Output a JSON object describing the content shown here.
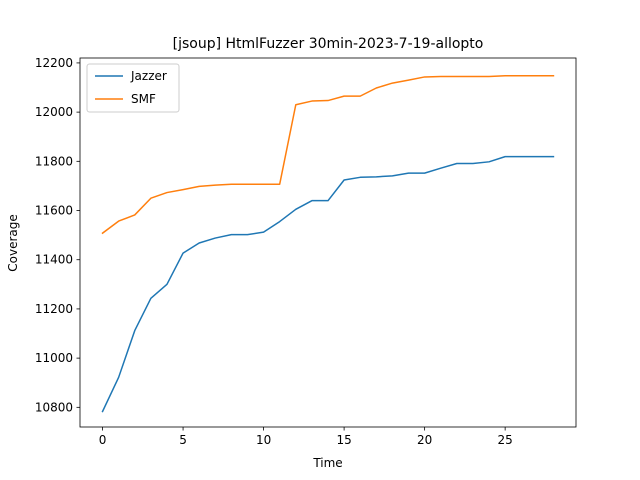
{
  "chart_data": {
    "type": "line",
    "title": "[jsoup] HtmlFuzzer 30min-2023-7-19-allopto",
    "xlabel": "Time",
    "ylabel": "Coverage",
    "xlim": [
      -1.4,
      29.4
    ],
    "ylim": [
      10720,
      12220
    ],
    "xticks": [
      0,
      5,
      10,
      15,
      20,
      25
    ],
    "yticks": [
      10800,
      11000,
      11200,
      11400,
      11600,
      11800,
      12000,
      12200
    ],
    "grid": false,
    "legend_position": "upper left",
    "x": [
      0,
      1,
      2,
      3,
      4,
      5,
      6,
      7,
      8,
      9,
      10,
      11,
      12,
      13,
      14,
      15,
      16,
      17,
      18,
      19,
      20,
      21,
      22,
      23,
      24,
      25,
      26,
      27,
      28
    ],
    "series": [
      {
        "name": "Jazzer",
        "color": "#1f77b4",
        "values": [
          10783,
          10922,
          11112,
          11243,
          11300,
          11427,
          11468,
          11488,
          11502,
          11502,
          11512,
          11555,
          11605,
          11640,
          11640,
          11724,
          11735,
          11737,
          11741,
          11752,
          11752,
          11772,
          11791,
          11791,
          11798,
          11819,
          11819,
          11819,
          11819
        ]
      },
      {
        "name": "SMF",
        "color": "#ff7f0e",
        "values": [
          11508,
          11557,
          11582,
          11650,
          11673,
          11685,
          11698,
          11703,
          11707,
          11707,
          11707,
          11707,
          12030,
          12045,
          12047,
          12065,
          12065,
          12098,
          12118,
          12130,
          12143,
          12145,
          12145,
          12145,
          12145,
          12148,
          12148,
          12148,
          12148
        ]
      }
    ]
  }
}
